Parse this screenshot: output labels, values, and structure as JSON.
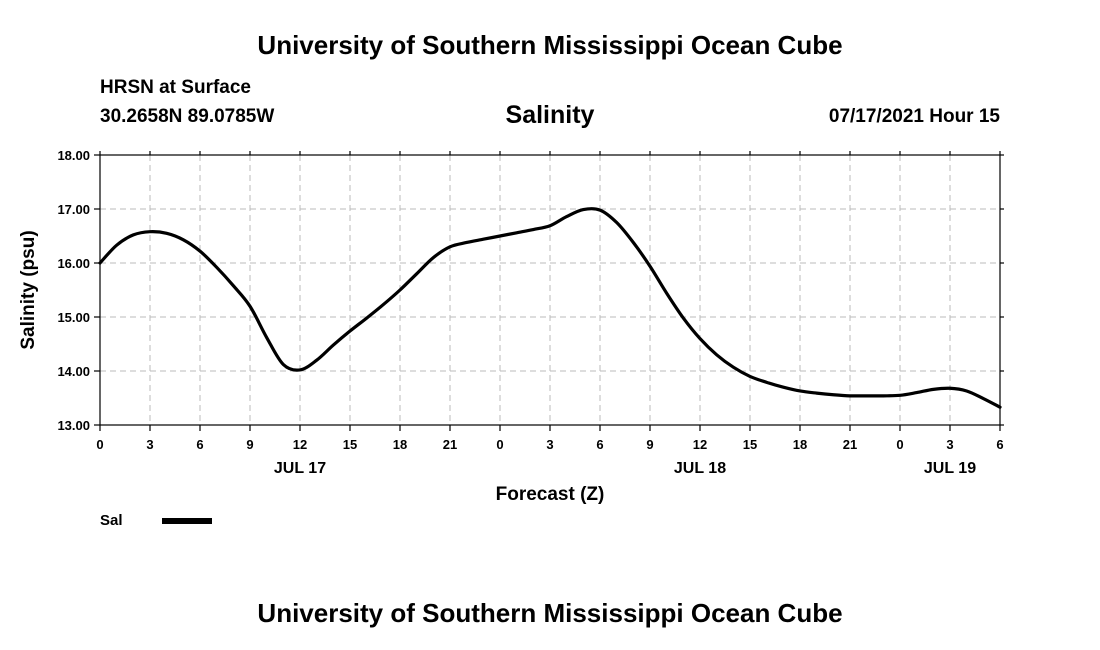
{
  "header": {
    "org_title": "University of Southern Mississippi Ocean Cube",
    "station": "HRSN at Surface",
    "coords": "30.2658N  89.0785W",
    "chart_title": "Salinity",
    "run_time": "07/17/2021 Hour 15"
  },
  "footer": {
    "org_title": "University of Southern Mississippi Ocean Cube"
  },
  "colors": {
    "line": "#000000",
    "grid": "#bbbbbb",
    "frame": "#000000"
  },
  "chart_data": {
    "type": "line",
    "title": "Salinity",
    "xlabel": "Forecast (Z)",
    "ylabel": "Salinity (psu)",
    "xlim": [
      0,
      54
    ],
    "ylim": [
      13.0,
      18.0
    ],
    "yticks": [
      13.0,
      14.0,
      15.0,
      16.0,
      17.0,
      18.0
    ],
    "ytick_labels": [
      "13.00",
      "14.00",
      "15.00",
      "16.00",
      "17.00",
      "18.00"
    ],
    "xticks": [
      0,
      3,
      6,
      9,
      12,
      15,
      18,
      21,
      24,
      27,
      30,
      33,
      36,
      39,
      42,
      45,
      48,
      51,
      54
    ],
    "xtick_labels": [
      "0",
      "3",
      "6",
      "9",
      "12",
      "15",
      "18",
      "21",
      "0",
      "3",
      "6",
      "9",
      "12",
      "15",
      "18",
      "21",
      "0",
      "3",
      "6"
    ],
    "date_labels": [
      {
        "label": "JUL 17",
        "at": 12
      },
      {
        "label": "JUL 18",
        "at": 36
      },
      {
        "label": "JUL 19",
        "at": 51
      }
    ],
    "grid": true,
    "legend": {
      "placement": "bottom-left",
      "entries": [
        {
          "name": "Sal"
        }
      ]
    },
    "series": [
      {
        "name": "Sal",
        "x": [
          0,
          1,
          2,
          3,
          4,
          5,
          6,
          7,
          8,
          9,
          10,
          11,
          12,
          13,
          14,
          15,
          16,
          17,
          18,
          19,
          20,
          21,
          22,
          23,
          24,
          25,
          26,
          27,
          28,
          29,
          30,
          31,
          32,
          33,
          34,
          35,
          36,
          37,
          38,
          39,
          40,
          41,
          42,
          43,
          44,
          45,
          46,
          47,
          48,
          49,
          50,
          51,
          52,
          53,
          54
        ],
        "values": [
          16.0,
          16.33,
          16.52,
          16.58,
          16.55,
          16.43,
          16.22,
          15.92,
          15.58,
          15.2,
          14.62,
          14.12,
          14.02,
          14.2,
          14.48,
          14.74,
          14.98,
          15.23,
          15.5,
          15.8,
          16.1,
          16.3,
          16.38,
          16.44,
          16.5,
          16.56,
          16.62,
          16.69,
          16.86,
          16.99,
          16.98,
          16.75,
          16.38,
          15.94,
          15.44,
          14.98,
          14.6,
          14.3,
          14.07,
          13.9,
          13.79,
          13.7,
          13.63,
          13.59,
          13.56,
          13.54,
          13.54,
          13.54,
          13.55,
          13.6,
          13.66,
          13.68,
          13.63,
          13.49,
          13.33
        ]
      }
    ]
  }
}
